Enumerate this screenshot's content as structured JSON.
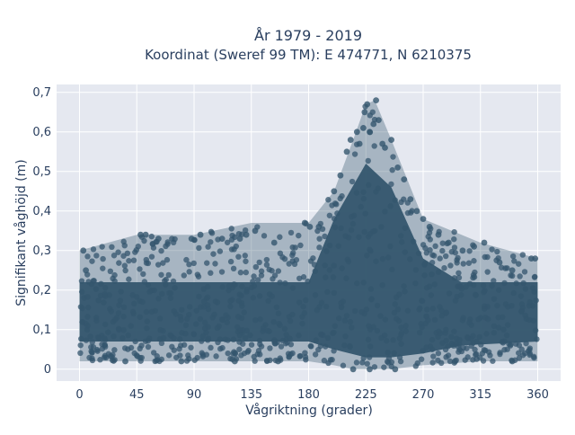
{
  "chart_data": {
    "type": "scatter",
    "title": "År 1979 - 2019",
    "subtitle": "Koordinat (Sweref 99 TM): E 474771, N 6210375",
    "xlabel": "Vågriktning (grader)",
    "ylabel": "Signifikant våghöjd (m)",
    "xlim": [
      -18,
      378
    ],
    "ylim": [
      -0.03,
      0.72
    ],
    "xticks": [
      0,
      45,
      90,
      135,
      180,
      225,
      270,
      315,
      360
    ],
    "xtick_labels": [
      "0",
      "45",
      "90",
      "135",
      "180",
      "225",
      "270",
      "315",
      "360"
    ],
    "yticks": [
      0,
      0.1,
      0.2,
      0.3,
      0.4,
      0.5,
      0.6,
      0.7
    ],
    "ytick_labels": [
      "0",
      "0,1",
      "0,2",
      "0,3",
      "0,4",
      "0,5",
      "0,6",
      "0,7"
    ],
    "grid": true,
    "marker_color": "#34566e",
    "background_color": "#e5e8f0",
    "envelope": [
      {
        "x": 0,
        "ymin": 0.02,
        "ymax": 0.3
      },
      {
        "x": 45,
        "ymin": 0.02,
        "ymax": 0.34
      },
      {
        "x": 90,
        "ymin": 0.02,
        "ymax": 0.34
      },
      {
        "x": 135,
        "ymin": 0.02,
        "ymax": 0.37
      },
      {
        "x": 180,
        "ymin": 0.02,
        "ymax": 0.37
      },
      {
        "x": 200,
        "ymin": 0.01,
        "ymax": 0.45
      },
      {
        "x": 215,
        "ymin": 0.0,
        "ymax": 0.58
      },
      {
        "x": 225,
        "ymin": 0.0,
        "ymax": 0.67
      },
      {
        "x": 232,
        "ymin": 0.0,
        "ymax": 0.68
      },
      {
        "x": 245,
        "ymin": 0.0,
        "ymax": 0.58
      },
      {
        "x": 270,
        "ymin": 0.01,
        "ymax": 0.38
      },
      {
        "x": 315,
        "ymin": 0.02,
        "ymax": 0.32
      },
      {
        "x": 360,
        "ymin": 0.02,
        "ymax": 0.28
      }
    ],
    "points": [
      {
        "x": 3,
        "y": 0.3
      },
      {
        "x": 5,
        "y": 0.25
      },
      {
        "x": 48,
        "y": 0.34
      },
      {
        "x": 52,
        "y": 0.34
      },
      {
        "x": 62,
        "y": 0.33
      },
      {
        "x": 88,
        "y": 0.33
      },
      {
        "x": 95,
        "y": 0.34
      },
      {
        "x": 112,
        "y": 0.33
      },
      {
        "x": 126,
        "y": 0.33
      },
      {
        "x": 131,
        "y": 0.34
      },
      {
        "x": 138,
        "y": 0.35
      },
      {
        "x": 153,
        "y": 0.32
      },
      {
        "x": 177,
        "y": 0.37
      },
      {
        "x": 181,
        "y": 0.36
      },
      {
        "x": 188,
        "y": 0.36
      },
      {
        "x": 200,
        "y": 0.45
      },
      {
        "x": 205,
        "y": 0.49
      },
      {
        "x": 210,
        "y": 0.55
      },
      {
        "x": 213,
        "y": 0.58
      },
      {
        "x": 218,
        "y": 0.6
      },
      {
        "x": 220,
        "y": 0.57
      },
      {
        "x": 223,
        "y": 0.61
      },
      {
        "x": 224,
        "y": 0.65
      },
      {
        "x": 226,
        "y": 0.67
      },
      {
        "x": 228,
        "y": 0.6
      },
      {
        "x": 231,
        "y": 0.62
      },
      {
        "x": 233,
        "y": 0.68
      },
      {
        "x": 235,
        "y": 0.63
      },
      {
        "x": 238,
        "y": 0.57
      },
      {
        "x": 240,
        "y": 0.56
      },
      {
        "x": 245,
        "y": 0.58
      },
      {
        "x": 250,
        "y": 0.51
      },
      {
        "x": 255,
        "y": 0.48
      },
      {
        "x": 260,
        "y": 0.43
      },
      {
        "x": 265,
        "y": 0.4
      },
      {
        "x": 270,
        "y": 0.38
      },
      {
        "x": 275,
        "y": 0.36
      },
      {
        "x": 282,
        "y": 0.34
      },
      {
        "x": 290,
        "y": 0.32
      },
      {
        "x": 301,
        "y": 0.3
      },
      {
        "x": 310,
        "y": 0.31
      },
      {
        "x": 318,
        "y": 0.32
      },
      {
        "x": 330,
        "y": 0.27
      },
      {
        "x": 340,
        "y": 0.25
      },
      {
        "x": 355,
        "y": 0.28
      },
      {
        "x": 358,
        "y": 0.28
      },
      {
        "x": 228,
        "y": 0.0
      },
      {
        "x": 248,
        "y": 0.0
      },
      {
        "x": 215,
        "y": 0.0
      },
      {
        "x": 36,
        "y": 0.02
      },
      {
        "x": 80,
        "y": 0.02
      },
      {
        "x": 122,
        "y": 0.02
      },
      {
        "x": 156,
        "y": 0.02
      },
      {
        "x": 295,
        "y": 0.02
      },
      {
        "x": 340,
        "y": 0.02
      }
    ]
  }
}
